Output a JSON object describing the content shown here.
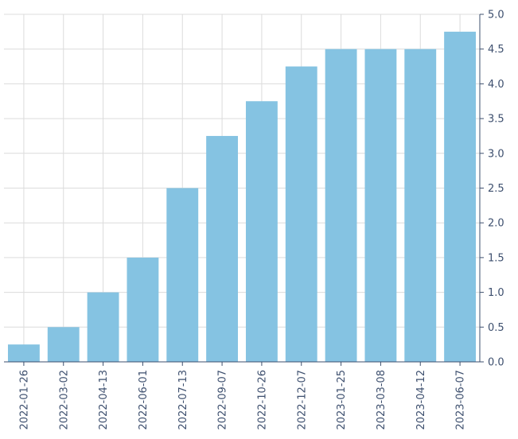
{
  "chart_data": {
    "type": "bar",
    "categories": [
      "2022-01-26",
      "2022-03-02",
      "2022-04-13",
      "2022-06-01",
      "2022-07-13",
      "2022-09-07",
      "2022-10-26",
      "2022-12-07",
      "2023-01-25",
      "2023-03-08",
      "2023-04-12",
      "2023-06-07"
    ],
    "values": [
      0.25,
      0.5,
      1.0,
      1.5,
      2.5,
      3.25,
      3.75,
      4.25,
      4.5,
      4.5,
      4.5,
      4.75
    ],
    "title": "",
    "xlabel": "",
    "ylabel": "",
    "ylim": [
      0,
      5
    ],
    "yticks": [
      "0.0",
      "0.5",
      "1.0",
      "1.5",
      "2.0",
      "2.5",
      "3.0",
      "3.5",
      "4.0",
      "4.5",
      "5.0"
    ],
    "y_axis_side": "right",
    "grid": true,
    "legend": "none",
    "colors": {
      "bar": "#85c3e2",
      "axis": "#3d4f6e",
      "grid": "#dcdcdc"
    }
  }
}
